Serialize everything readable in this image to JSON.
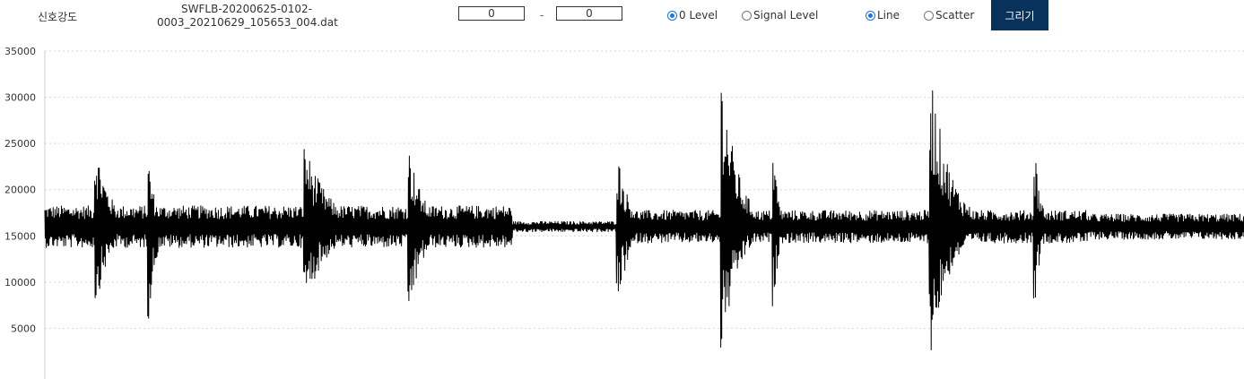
{
  "toolbar": {
    "title": "신호강도",
    "filename_line1": "SWFLB-20200625-0102-",
    "filename_line2": "0003_20210629_105653_004.dat",
    "range_from": "0",
    "range_separator": "-",
    "range_to": "0",
    "level_options": [
      {
        "label": "0 Level",
        "checked": true
      },
      {
        "label": "Signal Level",
        "checked": false
      }
    ],
    "style_options": [
      {
        "label": "Line",
        "checked": true
      },
      {
        "label": "Scatter",
        "checked": false
      }
    ],
    "draw_button": "그리기",
    "accent_color": "#08315c",
    "radio_color": "#1a73e8"
  },
  "chart_data": {
    "type": "line",
    "title": "",
    "xlabel": "",
    "ylabel": "",
    "ylim": [
      0,
      35000
    ],
    "y_ticks": [
      "35000",
      "30000",
      "25000",
      "20000",
      "15000",
      "10000",
      "5000"
    ],
    "y_tick_values": [
      35000,
      30000,
      25000,
      20000,
      15000,
      10000,
      5000
    ],
    "grid": "horizontal dotted",
    "line_color": "#000000",
    "baseline": 16000,
    "x_range": [
      0,
      1
    ],
    "bursts": [
      {
        "x": 0.043,
        "max": 25000,
        "min": 7500,
        "decay": 0.012
      },
      {
        "x": 0.087,
        "max": 23000,
        "min": 6000,
        "decay": 0.006
      },
      {
        "x": 0.217,
        "max": 25000,
        "min": 7500,
        "decay": 0.02
      },
      {
        "x": 0.304,
        "max": 24500,
        "min": 6300,
        "decay": 0.012
      },
      {
        "x": 0.478,
        "max": 23800,
        "min": 7300,
        "decay": 0.01
      },
      {
        "x": 0.565,
        "max": 32700,
        "min": 2000,
        "decay": 0.013
      },
      {
        "x": 0.608,
        "max": 24600,
        "min": 7200,
        "decay": 0.004
      },
      {
        "x": 0.739,
        "max": 33000,
        "min": 2000,
        "decay": 0.016
      },
      {
        "x": 0.826,
        "max": 24300,
        "min": 8000,
        "decay": 0.005
      }
    ],
    "noise_segments": [
      {
        "from": 0.0,
        "to": 0.39,
        "amp": 2300
      },
      {
        "from": 0.39,
        "to": 0.478,
        "amp": 600
      },
      {
        "from": 0.478,
        "to": 0.87,
        "amp": 1800
      },
      {
        "from": 0.87,
        "to": 1.0,
        "amp": 1400
      }
    ]
  }
}
